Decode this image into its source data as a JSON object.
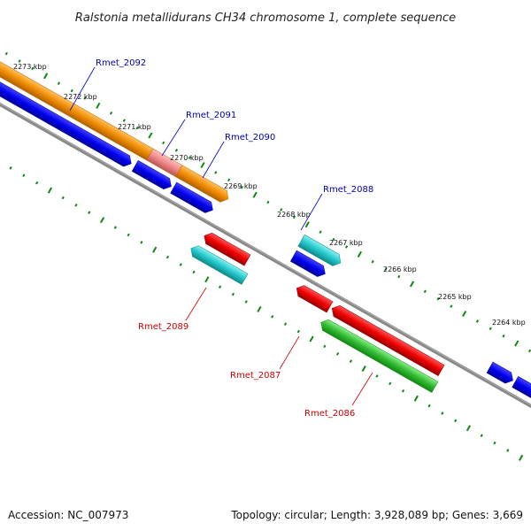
{
  "title": "Ralstonia metallidurans CH34 chromosome 1, complete sequence",
  "accession": "Accession: NC_007973",
  "summary": "Topology: circular; Length: 3,928,089 bp; Genes: 3,669",
  "scale_labels": [
    "2273 kbp",
    "2272 kbp",
    "2271 kbp",
    "2270 kbp",
    "2269 kbp",
    "2268 kbp",
    "2267 kbp",
    "2266 kbp",
    "2265 kbp",
    "2264 kbp"
  ],
  "gene_labels": {
    "forward": [
      "Rmet_2092",
      "Rmet_2091",
      "Rmet_2090",
      "Rmet_2088"
    ],
    "reverse": [
      "Rmet_2089",
      "Rmet_2087",
      "Rmet_2086"
    ]
  },
  "colors": {
    "orange": "#f08c00",
    "pink": "#ee8888",
    "blue": "#0000ee",
    "cyan": "#22c8cc",
    "red": "#ee0000",
    "green": "#33bb33",
    "backbone": "#888888",
    "tick": "#118811",
    "label_blue": "#0000aa",
    "label_red": "#cc0000"
  }
}
